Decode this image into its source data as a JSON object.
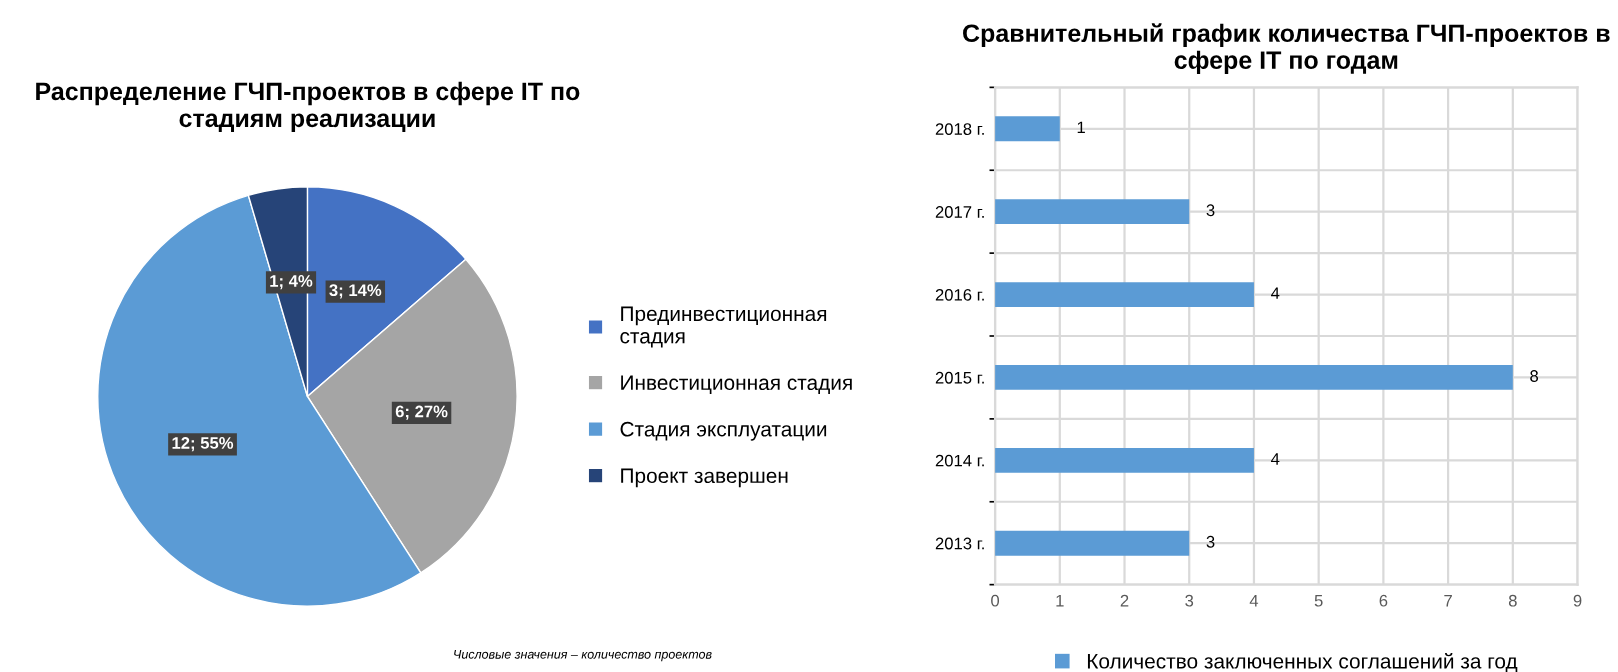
{
  "chart_data": [
    {
      "type": "pie",
      "title": "Распределение ГЧП-проектов в сфере IT по стадиям реализации",
      "categories": [
        "Прединвестиционная стадия",
        "Инвестиционная стадия",
        "Стадия эксплуатации",
        "Проект завершен"
      ],
      "values": [
        3,
        6,
        12,
        1
      ],
      "colors": [
        "#4472c4",
        "#a5a5a5",
        "#5b9bd5",
        "#264478"
      ],
      "value_labels": [
        "3; 14%",
        "6; 27%",
        "12; 55%",
        "1; 4%"
      ],
      "legend": "right",
      "annotations": [
        "Числовые значения – количество проектов"
      ]
    },
    {
      "type": "bar",
      "orientation": "horizontal",
      "title": "Сравнительный график количества ГЧП-проектов в сфере IT по годам",
      "categories": [
        "2018 г.",
        "2017 г.",
        "2016 г.",
        "2015 г.",
        "2014 г.",
        "2013 г."
      ],
      "series": [
        {
          "name": "Количество заключенных соглашений за год",
          "color": "#5b9bd5",
          "values": [
            1,
            3,
            4,
            8,
            4,
            3
          ]
        }
      ],
      "xlim": [
        0,
        9
      ],
      "xticks": [
        0,
        1,
        2,
        3,
        4,
        5,
        6,
        7,
        8,
        9
      ],
      "grid": true,
      "legend": "bottom",
      "data_labels": true
    }
  ]
}
